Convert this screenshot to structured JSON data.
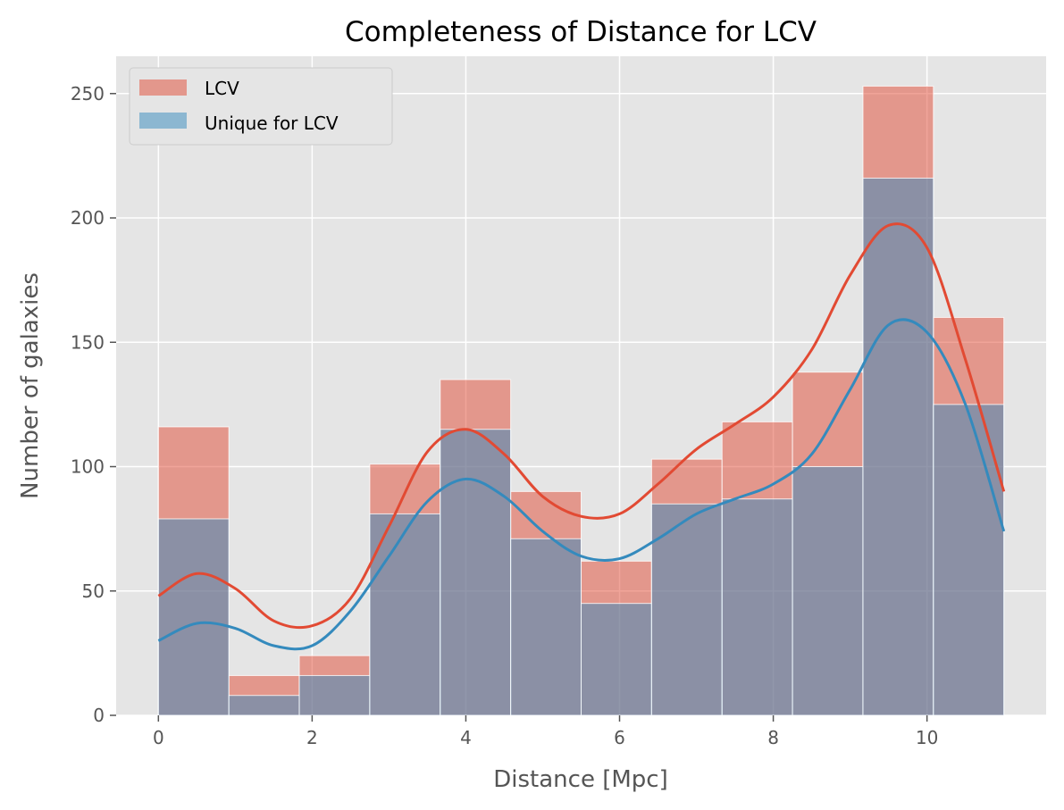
{
  "chart_data": {
    "type": "histogram",
    "title": "Completeness of Distance for LCV",
    "xlabel": "Distance [Mpc]",
    "ylabel": "Number of galaxies",
    "xlim": [
      -0.55,
      11.55
    ],
    "ylim": [
      0,
      265
    ],
    "x_ticks": [
      0,
      2,
      4,
      6,
      8,
      10
    ],
    "y_ticks": [
      0,
      50,
      100,
      150,
      200,
      250
    ],
    "grid": true,
    "legend_position": "upper-left",
    "bin_edges": [
      0,
      0.9167,
      1.8333,
      2.75,
      3.6667,
      4.5833,
      5.5,
      6.4167,
      7.3333,
      8.25,
      9.1667,
      10.0833,
      11.0
    ],
    "series": [
      {
        "name": "LCV",
        "color": "#E24A33",
        "counts": [
          116,
          16,
          24,
          101,
          135,
          90,
          62,
          103,
          118,
          138,
          253,
          160
        ],
        "kde_x": [
          0,
          0.5,
          1,
          1.5,
          2,
          2.5,
          3,
          3.5,
          4,
          4.5,
          5,
          5.5,
          6,
          6.5,
          7,
          7.5,
          8,
          8.5,
          9,
          9.5,
          10,
          10.5,
          11
        ],
        "kde_y": [
          48,
          57,
          51,
          38,
          36,
          47,
          76,
          106,
          115,
          105,
          88,
          80,
          81,
          93,
          107,
          117,
          128,
          147,
          177,
          197,
          188,
          143,
          90
        ]
      },
      {
        "name": "Unique for LCV",
        "color": "#348ABD",
        "counts": [
          79,
          8,
          16,
          81,
          115,
          71,
          45,
          85,
          87,
          100,
          216,
          125
        ],
        "kde_x": [
          0,
          0.5,
          1,
          1.5,
          2,
          2.5,
          3,
          3.5,
          4,
          4.5,
          5,
          5.5,
          6,
          6.5,
          7,
          7.5,
          8,
          8.5,
          9,
          9.5,
          10,
          10.5,
          11
        ],
        "kde_y": [
          30,
          37,
          35,
          28,
          28,
          42,
          64,
          86,
          95,
          88,
          74,
          64,
          63,
          71,
          81,
          87,
          93,
          105,
          131,
          157,
          154,
          125,
          74
        ]
      }
    ]
  }
}
